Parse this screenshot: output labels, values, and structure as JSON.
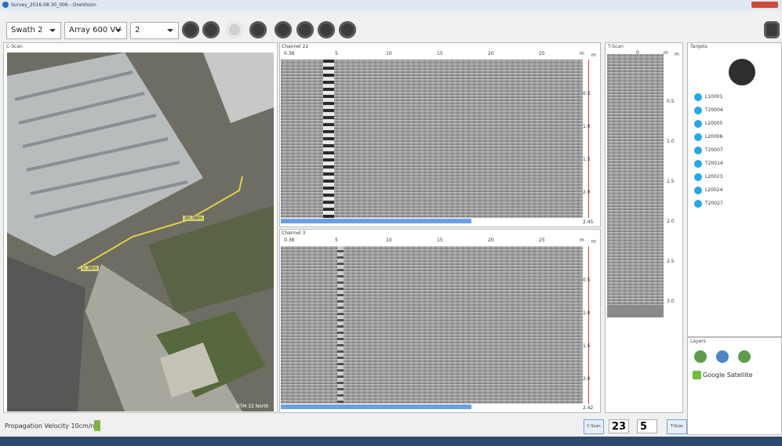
{
  "window": {
    "title": "Survey_2016.08.30_006 - OneVision"
  },
  "toolbar": {
    "swath": "Swath 2",
    "array": "Array 600 VV",
    "channel": "2"
  },
  "cscan": {
    "label": "C-Scan",
    "markers": [
      "30.38m",
      "0.38m"
    ],
    "projection": "UTM 32 North"
  },
  "channels": [
    {
      "label": "Channel 22",
      "x_ticks": [
        "0.38",
        "5",
        "10",
        "15",
        "20",
        "25"
      ],
      "x_unit": "m",
      "depth_unit": "m",
      "depth_ticks": [
        "0.5",
        "1.0",
        "1.5",
        "2.0"
      ],
      "depth_max": "2.45"
    },
    {
      "label": "Channel 3",
      "x_ticks": [
        "0.38",
        "5",
        "10",
        "15",
        "20",
        "25"
      ],
      "x_unit": "m",
      "depth_unit": "m",
      "depth_ticks": [
        "0.5",
        "1.0",
        "1.5",
        "2.0"
      ],
      "depth_max": "2.42"
    }
  ],
  "tscan": {
    "label": "T-Scan",
    "x_ticks": [
      "0"
    ],
    "x_unit": "m",
    "depth_unit": "m",
    "depth_ticks": [
      "0.5",
      "1.0",
      "1.5",
      "2.0",
      "2.5",
      "3.0"
    ]
  },
  "targets": {
    "label": "Targets",
    "items": [
      "L10001",
      "T20004",
      "L20005",
      "L20006",
      "T20007",
      "T20014",
      "L20023",
      "L20024",
      "T20027"
    ]
  },
  "layers": {
    "label": "Layers",
    "items": [
      "Google Satellite"
    ]
  },
  "status": {
    "velocity": "Propagation Velocity 10cm/ns",
    "cscan_button": "C-Scan",
    "value1": "23",
    "value2": "5",
    "tscan_button": "T-Scan"
  }
}
